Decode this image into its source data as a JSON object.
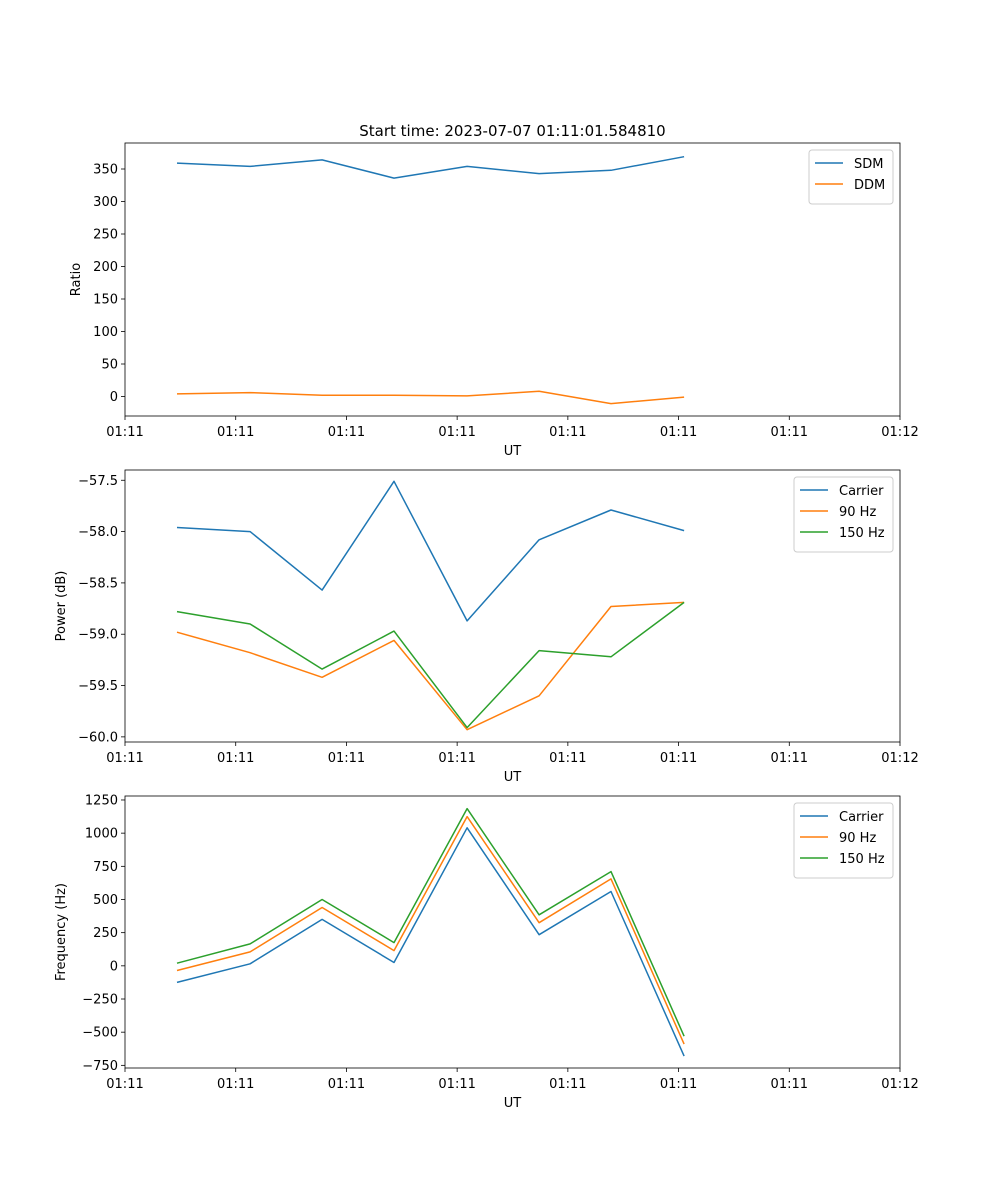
{
  "figure": {
    "title": "Start time: 2023-07-07 01:11:01.584810"
  },
  "chart_data": [
    {
      "type": "line",
      "title": "Start time: 2023-07-07 01:11:01.584810",
      "xlabel": "UT",
      "ylabel": "Ratio",
      "x_ticks": [
        "01:11",
        "01:11",
        "01:11",
        "01:11",
        "01:11",
        "01:11",
        "01:11"
      ],
      "x_tick_extra": "01:12",
      "x_range": [
        0,
        7
      ],
      "x": [
        0.47,
        1.13,
        1.78,
        2.43,
        3.09,
        3.74,
        4.39,
        5.05
      ],
      "ylim": [
        -30,
        390
      ],
      "y_ticks": [
        0,
        50,
        100,
        150,
        200,
        250,
        300,
        350
      ],
      "y_tick_labels": [
        "0",
        "50",
        "100",
        "150",
        "200",
        "250",
        "300",
        "350"
      ],
      "legend_loc": "top-right",
      "series": [
        {
          "name": "SDM",
          "color": "#1f77b4",
          "values": [
            359,
            354,
            364,
            336,
            354,
            343,
            348,
            369
          ]
        },
        {
          "name": "DDM",
          "color": "#ff7f0e",
          "values": [
            4,
            6,
            2,
            2,
            1,
            8,
            -11,
            -1
          ]
        }
      ]
    },
    {
      "type": "line",
      "xlabel": "UT",
      "ylabel": "Power (dB)",
      "x_ticks": [
        "01:11",
        "01:11",
        "01:11",
        "01:11",
        "01:11",
        "01:11",
        "01:11"
      ],
      "x_tick_extra": "01:12",
      "x_range": [
        0,
        7
      ],
      "x": [
        0.47,
        1.13,
        1.78,
        2.43,
        3.09,
        3.74,
        4.39,
        5.05
      ],
      "ylim": [
        -60.05,
        -57.4
      ],
      "y_ticks": [
        -60.0,
        -59.5,
        -59.0,
        -58.5,
        -58.0,
        -57.5
      ],
      "y_tick_labels": [
        "−60.0",
        "−59.5",
        "−59.0",
        "−58.5",
        "−58.0",
        "−57.5"
      ],
      "legend_loc": "top-right",
      "series": [
        {
          "name": "Carrier",
          "color": "#1f77b4",
          "values": [
            -57.96,
            -58.0,
            -58.57,
            -57.51,
            -58.87,
            -58.08,
            -57.79,
            -57.99
          ]
        },
        {
          "name": "90 Hz",
          "color": "#ff7f0e",
          "values": [
            -58.98,
            -59.18,
            -59.42,
            -59.06,
            -59.93,
            -59.6,
            -58.73,
            -58.69
          ]
        },
        {
          "name": "150 Hz",
          "color": "#2ca02c",
          "values": [
            -58.78,
            -58.9,
            -59.34,
            -58.97,
            -59.91,
            -59.16,
            -59.22,
            -58.69
          ]
        }
      ]
    },
    {
      "type": "line",
      "xlabel": "UT",
      "ylabel": "Frequency (Hz)",
      "x_ticks": [
        "01:11",
        "01:11",
        "01:11",
        "01:11",
        "01:11",
        "01:11",
        "01:11"
      ],
      "x_tick_extra": "01:12",
      "x_range": [
        0,
        7
      ],
      "x": [
        0.47,
        1.13,
        1.78,
        2.43,
        3.09,
        3.74,
        4.39,
        5.05
      ],
      "ylim": [
        -770,
        1280
      ],
      "y_ticks": [
        -750,
        -500,
        -250,
        0,
        250,
        500,
        750,
        1000,
        1250
      ],
      "y_tick_labels": [
        "−750",
        "−500",
        "−250",
        "0",
        "250",
        "500",
        "750",
        "1000",
        "1250"
      ],
      "legend_loc": "top-right",
      "series": [
        {
          "name": "Carrier",
          "color": "#1f77b4",
          "values": [
            -125,
            15,
            350,
            25,
            1040,
            235,
            560,
            -680
          ]
        },
        {
          "name": "90 Hz",
          "color": "#ff7f0e",
          "values": [
            -35,
            105,
            440,
            115,
            1125,
            325,
            655,
            -590
          ]
        },
        {
          "name": "150 Hz",
          "color": "#2ca02c",
          "values": [
            20,
            165,
            500,
            175,
            1185,
            385,
            710,
            -530
          ]
        }
      ]
    }
  ]
}
